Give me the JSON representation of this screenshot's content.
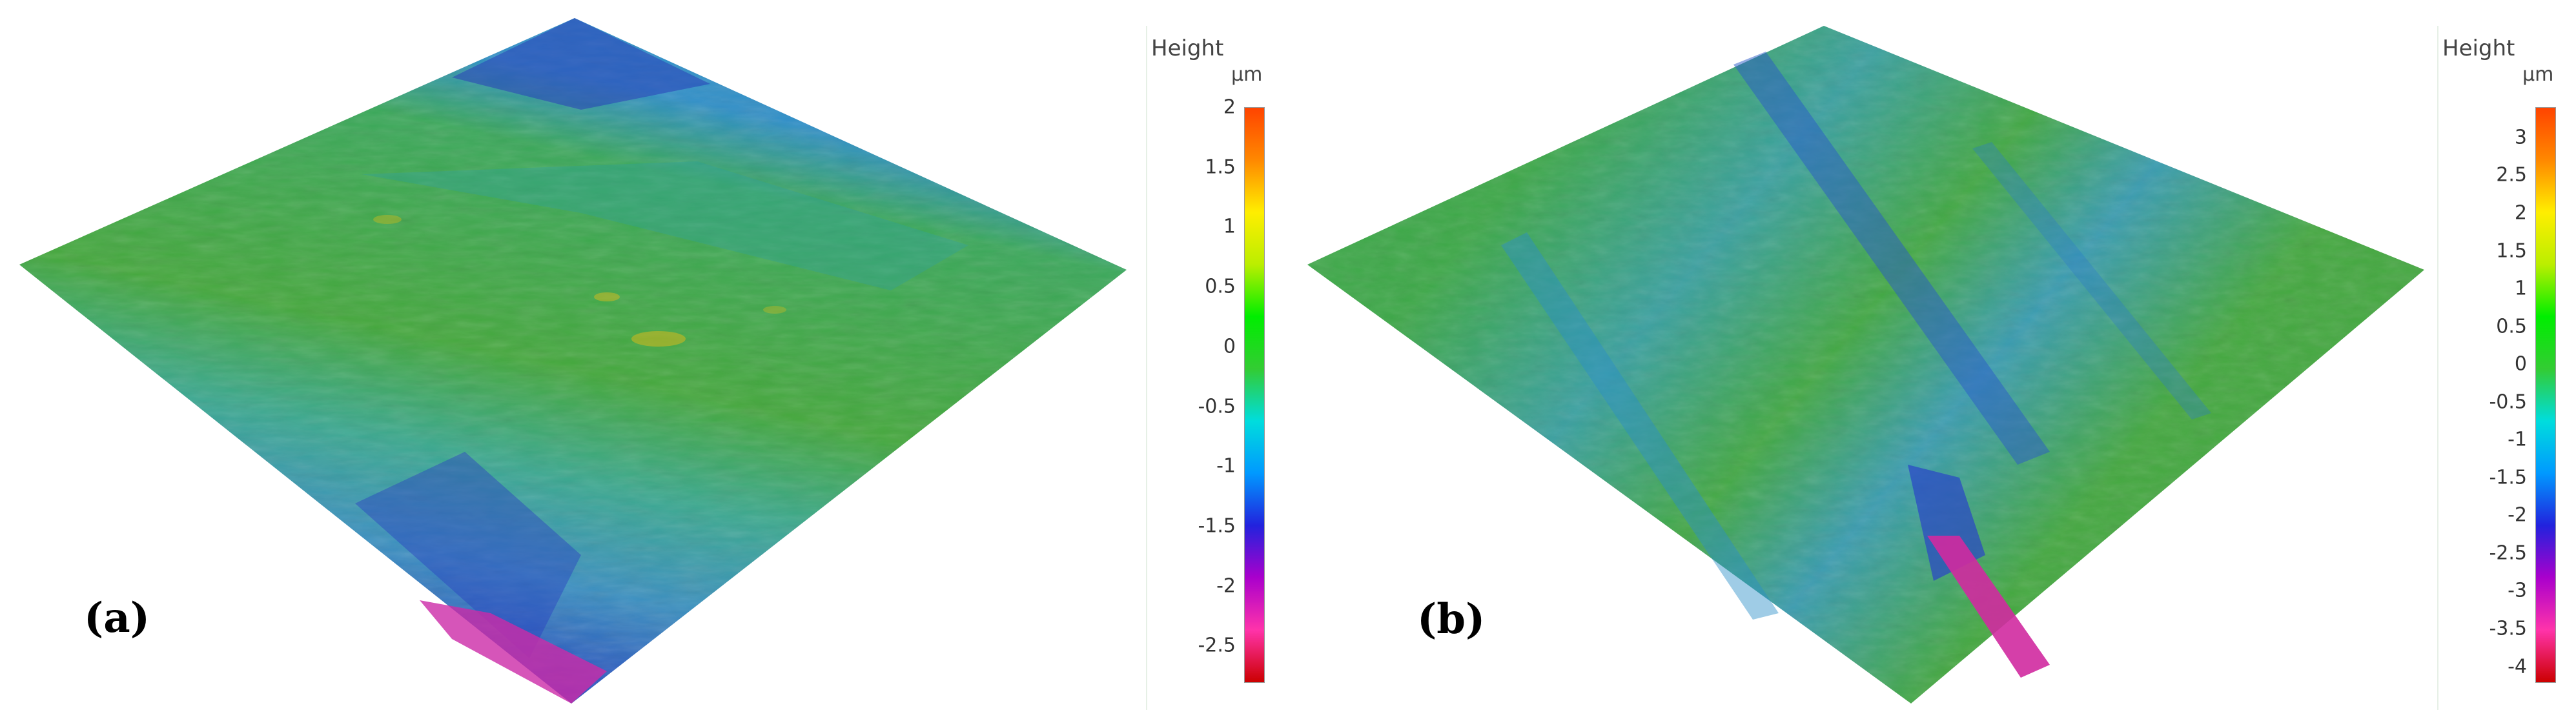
{
  "panels": [
    {
      "label": "(a)",
      "legend": {
        "title": "Height",
        "unit": "µm",
        "range": [
          -2.8,
          2.0
        ],
        "ticks": [
          "2",
          "1.5",
          "1",
          "0.5",
          "0",
          "-0.5",
          "-1",
          "-1.5",
          "-2",
          "-2.5"
        ],
        "tick_values": [
          2,
          1.5,
          1,
          0.5,
          0,
          -0.5,
          -1,
          -1.5,
          -2,
          -2.5
        ]
      }
    },
    {
      "label": "(b)",
      "legend": {
        "title": "Height",
        "unit": "µm",
        "range": [
          -4.2,
          3.4
        ],
        "ticks": [
          "3",
          "2.5",
          "2",
          "1.5",
          "1",
          "0.5",
          "0",
          "-0.5",
          "-1",
          "-1.5",
          "-2",
          "-2.5",
          "-3",
          "-3.5",
          "-4"
        ],
        "tick_values": [
          3,
          2.5,
          2,
          1.5,
          1,
          0.5,
          0,
          -0.5,
          -1,
          -1.5,
          -2,
          -2.5,
          -3,
          -3.5,
          -4
        ]
      }
    }
  ],
  "colormap": [
    "#cc0000",
    "#ff33aa",
    "#aa00cc",
    "#2222dd",
    "#0099ff",
    "#00dddd",
    "#33cc33",
    "#00ee00",
    "#bbee00",
    "#ffee00",
    "#ff8800",
    "#ff4400"
  ]
}
